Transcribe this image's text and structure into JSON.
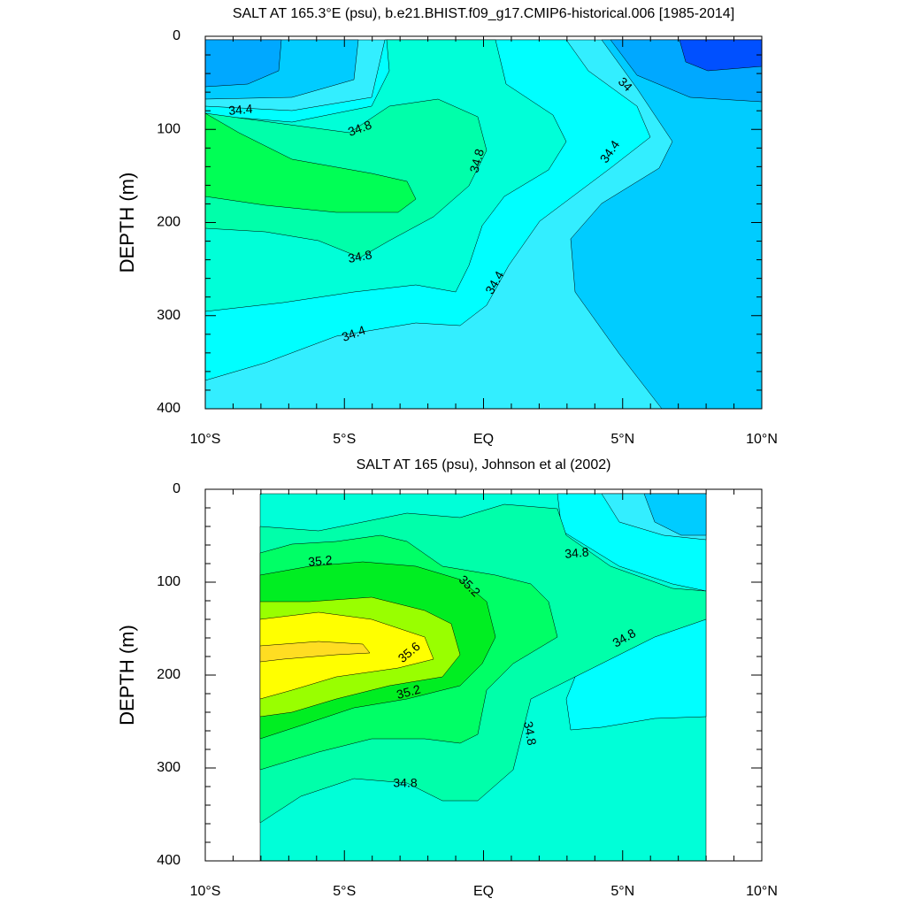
{
  "chart_data": [
    {
      "type": "contour",
      "title": "SALT AT 165.3°E (psu), b.e21.BHIST.f09_g17.CMIP6-historical.006 [1985-2014]",
      "ylabel": "DEPTH (m)",
      "xlim": [
        -10,
        10
      ],
      "xticks": [
        {
          "value": -10,
          "label": "10°S"
        },
        {
          "value": -5,
          "label": "5°S"
        },
        {
          "value": 0,
          "label": "EQ"
        },
        {
          "value": 5,
          "label": "5°N"
        },
        {
          "value": 10,
          "label": "10°N"
        }
      ],
      "ylim": [
        0,
        400
      ],
      "y_inverted": true,
      "yticks": [
        0,
        100,
        200,
        300,
        400
      ],
      "levels": [
        33.8,
        34,
        34.2,
        34.4,
        34.6,
        34.8,
        35,
        35.2,
        35.4,
        35.6,
        35.8
      ],
      "colors": [
        "#0050ff",
        "#00a8ff",
        "#00ccff",
        "#33eeff",
        "#00ffff",
        "#00ffd8",
        "#00ffaa",
        "#00ff55",
        "#00ee22",
        "#99ff00",
        "#ffff00",
        "#ffdd22"
      ],
      "contour_labels": [
        34.4,
        34.8,
        34.8,
        34.8,
        34.4,
        34.4,
        34,
        34.4
      ]
    },
    {
      "type": "contour",
      "title": "SALT AT 165 (psu), Johnson et al (2002)",
      "ylabel": "DEPTH (m)",
      "xlim": [
        -10,
        10
      ],
      "xticks": [
        {
          "value": -10,
          "label": "10°S"
        },
        {
          "value": -5,
          "label": "5°S"
        },
        {
          "value": 0,
          "label": "EQ"
        },
        {
          "value": 5,
          "label": "5°N"
        },
        {
          "value": 10,
          "label": "10°N"
        }
      ],
      "ylim": [
        0,
        400
      ],
      "y_inverted": true,
      "yticks": [
        0,
        100,
        200,
        300,
        400
      ],
      "levels": [
        33.8,
        34,
        34.2,
        34.4,
        34.6,
        34.8,
        35,
        35.2,
        35.4,
        35.6,
        35.8
      ],
      "colors": [
        "#0050ff",
        "#00a8ff",
        "#00ccff",
        "#33eeff",
        "#00ffff",
        "#00ffd8",
        "#00ffaa",
        "#00ff66",
        "#00ee22",
        "#99ff00",
        "#ffff00",
        "#ffdd22"
      ],
      "contour_labels": [
        35.2,
        35.2,
        35.6,
        35.2,
        34.8,
        34.8,
        34.8,
        34.8
      ]
    }
  ]
}
